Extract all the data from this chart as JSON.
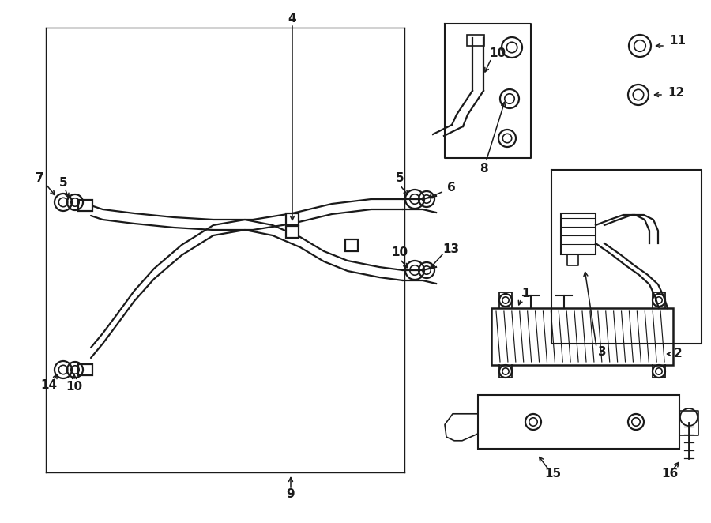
{
  "bg_color": "#ffffff",
  "line_color": "#1a1a1a",
  "fig_width": 9.0,
  "fig_height": 6.62,
  "dpi": 100,
  "lw": 1.6,
  "lw_thin": 1.0,
  "font_size": 11
}
